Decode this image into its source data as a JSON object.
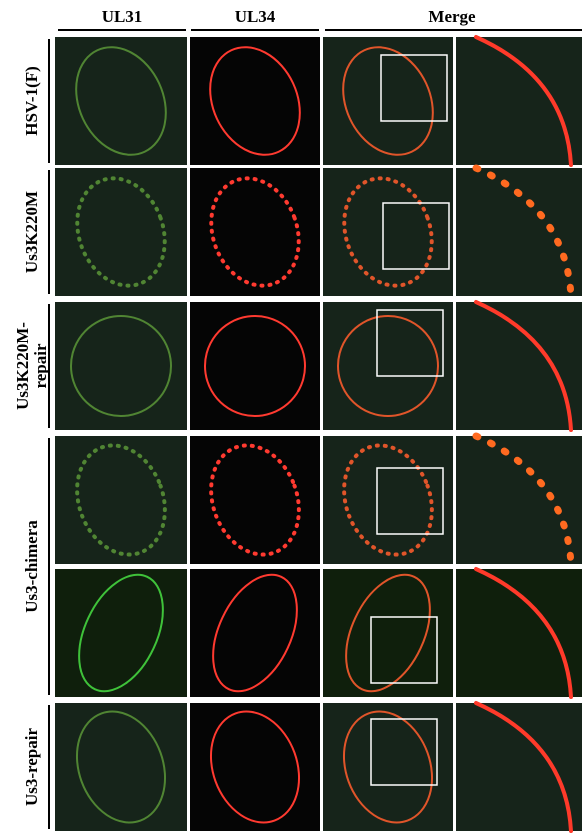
{
  "columns": [
    "UL31",
    "UL34",
    "Merge"
  ],
  "rows": [
    {
      "label": [
        "HSV-1(F)"
      ]
    },
    {
      "label": [
        "Us3K220M"
      ]
    },
    {
      "label": [
        "Us3K220M-",
        "repair"
      ]
    },
    {
      "label": [
        "Us3-chimera"
      ]
    },
    {
      "label": [
        "Us3-repair"
      ]
    }
  ],
  "extra_row_label": [
    "Us3-chimera"
  ]
}
